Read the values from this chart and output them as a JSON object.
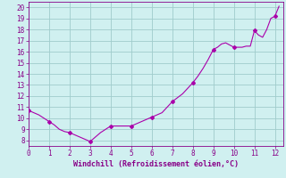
{
  "x": [
    0,
    0.25,
    0.5,
    0.75,
    1,
    1.25,
    1.5,
    1.75,
    2,
    2.25,
    2.5,
    2.75,
    3,
    3.25,
    3.5,
    3.75,
    4,
    4.25,
    4.5,
    4.75,
    5,
    5.25,
    5.5,
    5.75,
    6,
    6.25,
    6.5,
    6.75,
    7,
    7.25,
    7.5,
    7.75,
    8,
    8.25,
    8.5,
    8.75,
    9,
    9.2,
    9.4,
    9.6,
    9.8,
    10,
    10.2,
    10.4,
    10.6,
    10.8,
    11,
    11.2,
    11.4,
    11.6,
    11.8,
    12,
    12.2
  ],
  "y": [
    10.7,
    10.5,
    10.3,
    10.0,
    9.7,
    9.4,
    9.0,
    8.8,
    8.7,
    8.5,
    8.3,
    8.1,
    7.9,
    8.3,
    8.7,
    9.0,
    9.3,
    9.3,
    9.3,
    9.3,
    9.3,
    9.5,
    9.7,
    9.9,
    10.1,
    10.3,
    10.5,
    11.0,
    11.5,
    11.85,
    12.2,
    12.7,
    13.2,
    13.8,
    14.5,
    15.3,
    16.2,
    16.4,
    16.7,
    16.8,
    16.6,
    16.4,
    16.4,
    16.4,
    16.5,
    16.5,
    17.9,
    17.5,
    17.3,
    18.0,
    19.0,
    19.2,
    20.1
  ],
  "line_color": "#aa00aa",
  "marker_x": [
    0,
    1,
    2,
    3,
    4,
    5,
    6,
    7,
    8,
    9,
    10,
    11,
    12
  ],
  "marker_y": [
    10.7,
    9.7,
    8.7,
    7.9,
    9.3,
    9.3,
    10.1,
    11.5,
    13.2,
    16.2,
    16.4,
    17.9,
    19.2
  ],
  "xlabel": "Windchill (Refroidissement éolien,°C)",
  "xlim": [
    0,
    12.4
  ],
  "ylim": [
    7.5,
    20.5
  ],
  "xticks": [
    0,
    1,
    2,
    3,
    4,
    5,
    6,
    7,
    8,
    9,
    10,
    11,
    12
  ],
  "yticks": [
    8,
    9,
    10,
    11,
    12,
    13,
    14,
    15,
    16,
    17,
    18,
    19,
    20
  ],
  "bg_color": "#d0f0f0",
  "grid_color": "#a0cccc",
  "font_color": "#880088",
  "tick_fontsize": 5.5,
  "xlabel_fontsize": 6.0
}
